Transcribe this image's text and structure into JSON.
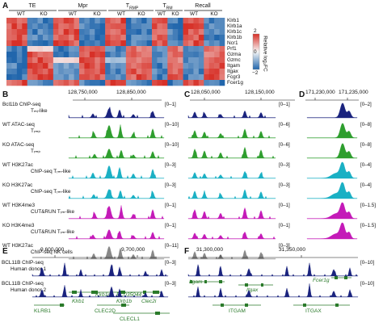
{
  "panels": {
    "A": "A",
    "B": "B",
    "C": "C",
    "D": "D",
    "E": "E",
    "F": "F"
  },
  "heatmap": {
    "groups": [
      {
        "label": "TE",
        "sub": [
          "WT",
          "KO"
        ]
      },
      {
        "label": "Mpr",
        "sub": [
          "WT",
          "KO"
        ]
      },
      {
        "label": "T",
        "sub_sc": "RMP",
        "sub": [
          "WT",
          "KO"
        ]
      },
      {
        "label": "T",
        "sub_sc": "RM",
        "sub": [
          "WT",
          "KO"
        ]
      },
      {
        "label": "Recall",
        "sub": [
          "WT",
          "KO"
        ]
      }
    ],
    "genes": [
      "Klrb1",
      "Klrb1a",
      "Klrb1c",
      "Klrb1b",
      "Ncr1",
      "Prf1",
      "Gzma",
      "Gzmc",
      "Itgam",
      "Itgax",
      "Fcgr3",
      "Fcer1g"
    ],
    "legend": {
      "label": "Relative log₂FC",
      "ticks": [
        "2",
        "0",
        "−2"
      ]
    },
    "colors": {
      "high": "#d73027",
      "mid": "#f7f7f7",
      "low": "#2166ac"
    }
  },
  "panelB": {
    "coords": [
      "128,750,000",
      "128,850,000"
    ],
    "tracks": [
      {
        "label1": "Bcl11b ChIP-seq",
        "label2": "Tₘᵢ-like",
        "range": "[0–1]",
        "color": "#1a237e"
      },
      {
        "label1": "WT ATAC-seq",
        "label2": "Tᵣₘₚ",
        "range": "[0–10]",
        "color": "#2e9e2e"
      },
      {
        "label1": "KO ATAC-seq",
        "label2": "Tᵣₘₚ",
        "range": "[0–10]",
        "color": "#2e9e2e"
      },
      {
        "label1": "WT H3K27ac",
        "label2": "ChIP-seq Tᵣₘ-like",
        "range": "[0–3]",
        "color": "#1ab0c4"
      },
      {
        "label1": "KO H3K27ac",
        "label2": "ChIP-seq Tᵣₘ-like",
        "range": "[0–3]",
        "color": "#1ab0c4"
      },
      {
        "label1": "WT H3K4me3",
        "label2": "CUT&RUN Tᵣₘ-like",
        "range": "[0–1]",
        "color": "#c41ab8"
      },
      {
        "label1": "KO H3K4me3",
        "label2": "CUT&RUN Tᵣₘ-like",
        "range": "[0–1]",
        "color": "#c41ab8"
      },
      {
        "label1": "WT H3K27ac",
        "label2": "ChIP-seq NK cells",
        "range": "[0–11]",
        "color": "#888888"
      }
    ],
    "genes": [
      "Klrb1",
      "Klrb1c",
      "Klrb1b",
      "BC035044",
      "Clec2i"
    ]
  },
  "panelC": {
    "coords": [
      "128,050,000",
      "128,150,000"
    ],
    "ranges": [
      "[0–1]",
      "[0–6]",
      "[0–6]",
      "[0–3]",
      "[0–3]",
      "[0–1]",
      "[0–1]",
      "[0–3]"
    ],
    "genes": [
      "Itgam",
      "Itgax"
    ]
  },
  "panelD": {
    "coords": [
      "171,230,000",
      "171,235,000"
    ],
    "ranges": [
      "[0–2]",
      "[0–8]",
      "[0–8]",
      "[0–4]",
      "[0–4]",
      "[0–1.5]",
      "[0–1.5]"
    ],
    "genes": [
      "Fcer1g"
    ]
  },
  "panelE": {
    "coords": [
      "9,600,000",
      "9,700,000"
    ],
    "tracks": [
      {
        "label1": "BCL11B ChIP-seq",
        "label2": "Human donor 1",
        "range": "[0–3]"
      },
      {
        "label1": "BCL11B ChIP-seq",
        "label2": "Human donor 2",
        "range": "[0–3]"
      }
    ],
    "genes": [
      "KLRB1",
      "CLEC2D",
      "CLECL1"
    ]
  },
  "panelF": {
    "coords": [
      "31,300,000",
      "31,350,000"
    ],
    "ranges": [
      "[0–10]",
      "[0–10]"
    ],
    "genes": [
      "ITGAM",
      "ITGAX"
    ]
  }
}
